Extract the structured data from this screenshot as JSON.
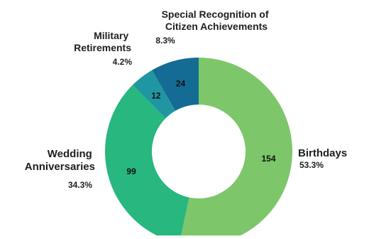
{
  "chart_data": {
    "type": "pie",
    "donut": true,
    "legend": "none",
    "slices": [
      {
        "name": "Birthdays",
        "value": 154,
        "percent": "53.3%",
        "color": "#7ec66a"
      },
      {
        "name": "Wedding Anniversaries",
        "value": 99,
        "percent": "34.3%",
        "color": "#27b77f"
      },
      {
        "name": "Military Retirements",
        "value": 12,
        "percent": "4.2%",
        "color": "#1f96a2"
      },
      {
        "name": "Special Recognition of Citizen Achievements",
        "value": 24,
        "percent": "8.3%",
        "color": "#146c95"
      }
    ]
  }
}
